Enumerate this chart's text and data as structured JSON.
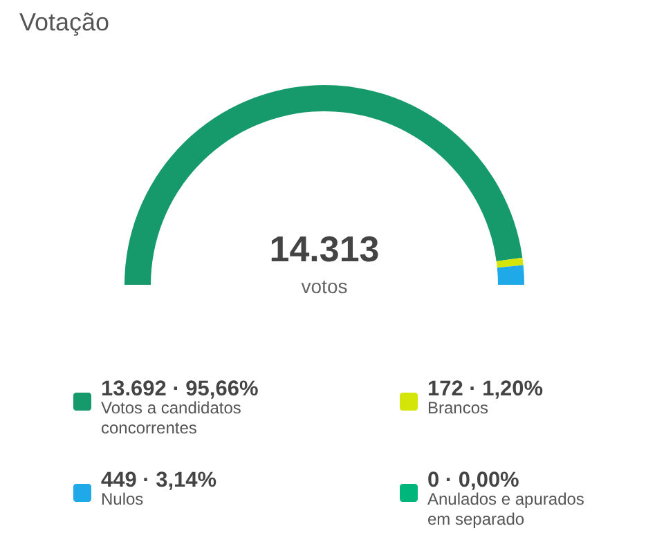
{
  "chart_data": {
    "type": "donut",
    "title": "Votação",
    "categories": [
      "Votos a candidatos concorrentes",
      "Brancos",
      "Nulos",
      "Anulados e apurados em separado"
    ],
    "values": [
      13692,
      172,
      449,
      0
    ],
    "colors": [
      "#16996b",
      "#d4e50a",
      "#1fa9e8",
      "#00b67a"
    ],
    "value_labels": [
      "13.692 · 95,66%",
      "172 · 1,20%",
      "449 · 3,14%",
      "0 · 0,00%"
    ],
    "annotations": [
      "14.313",
      "votos"
    ],
    "legend": "bottom"
  }
}
